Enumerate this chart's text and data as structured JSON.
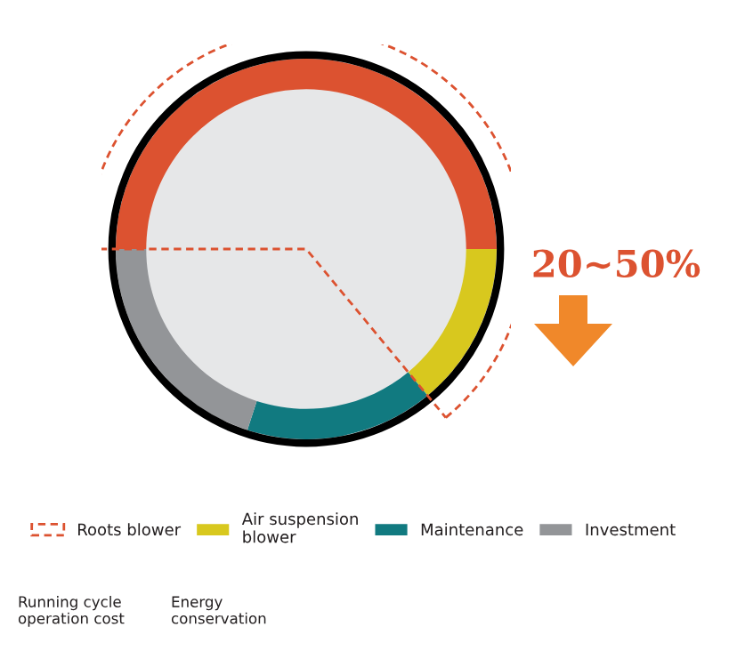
{
  "chart_data": {
    "type": "donut",
    "categories": [
      null,
      "Air suspension\nblower",
      "Maintenance",
      "Investment"
    ],
    "values": [
      50,
      14,
      16,
      20
    ],
    "colors": [
      "#dc5230",
      "#d8c81e",
      "#117a80",
      "#939598"
    ],
    "legend": "bottom",
    "annotations": [
      "Roots blower",
      "Running cycle\noperation cost",
      "Energy\nconservation",
      "20~50%"
    ]
  }
}
